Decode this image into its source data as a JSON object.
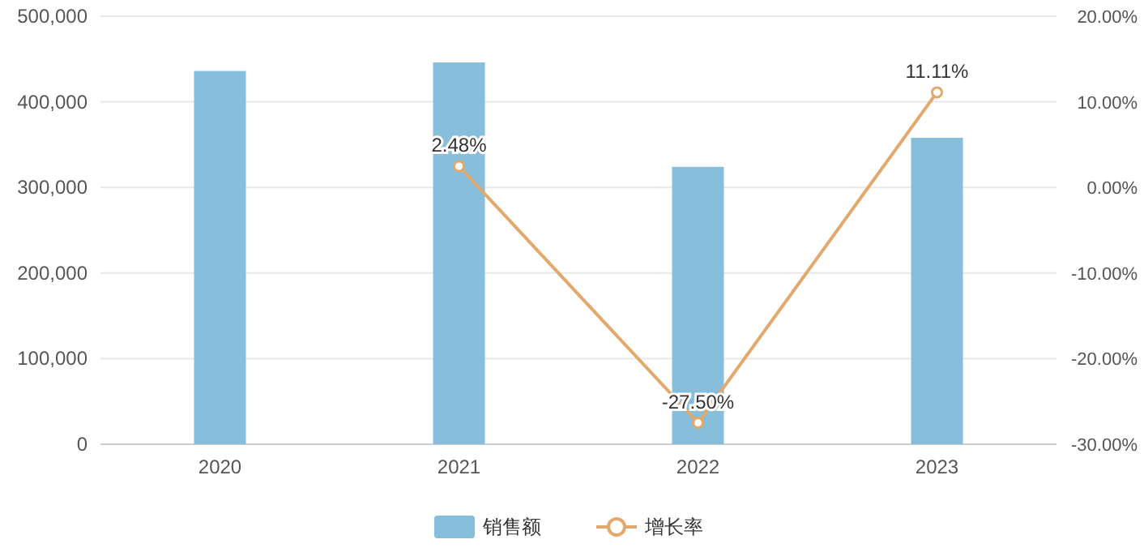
{
  "chart_data": {
    "type": "bar",
    "categories": [
      "2020",
      "2021",
      "2022",
      "2023"
    ],
    "series": [
      {
        "name": "销售额",
        "color": "#86bedb",
        "values": [
          436000,
          446000,
          324000,
          358000
        ]
      },
      {
        "name": "增长率",
        "type": "line",
        "axis": "y2",
        "color": "#e3a86b",
        "marker": "circle",
        "values": [
          null,
          2.48,
          -27.5,
          11.11
        ],
        "value_labels": [
          null,
          "2.48%",
          "-27.50%",
          "11.11%"
        ]
      }
    ],
    "ylim": [
      0,
      500000
    ],
    "yticks": [
      0,
      {
        "value": 100000,
        "label": "100,000"
      },
      {
        "value": 200000,
        "label": "200,000"
      },
      {
        "value": 300000,
        "label": "300,000"
      },
      {
        "value": 400000,
        "label": "400,000"
      },
      {
        "value": 500000,
        "label": "500,000"
      }
    ],
    "y2lim": [
      -30,
      20
    ],
    "y2ticks": [
      {
        "value": -30,
        "label": "-30.00%"
      },
      {
        "value": -20,
        "label": "-20.00%"
      },
      {
        "value": -10,
        "label": "-10.00%"
      },
      {
        "value": 0,
        "label": "0.00%"
      },
      {
        "value": 10,
        "label": "10.00%"
      },
      {
        "value": 20,
        "label": "20.00%"
      }
    ],
    "grid": "y",
    "legend": "bottom"
  }
}
